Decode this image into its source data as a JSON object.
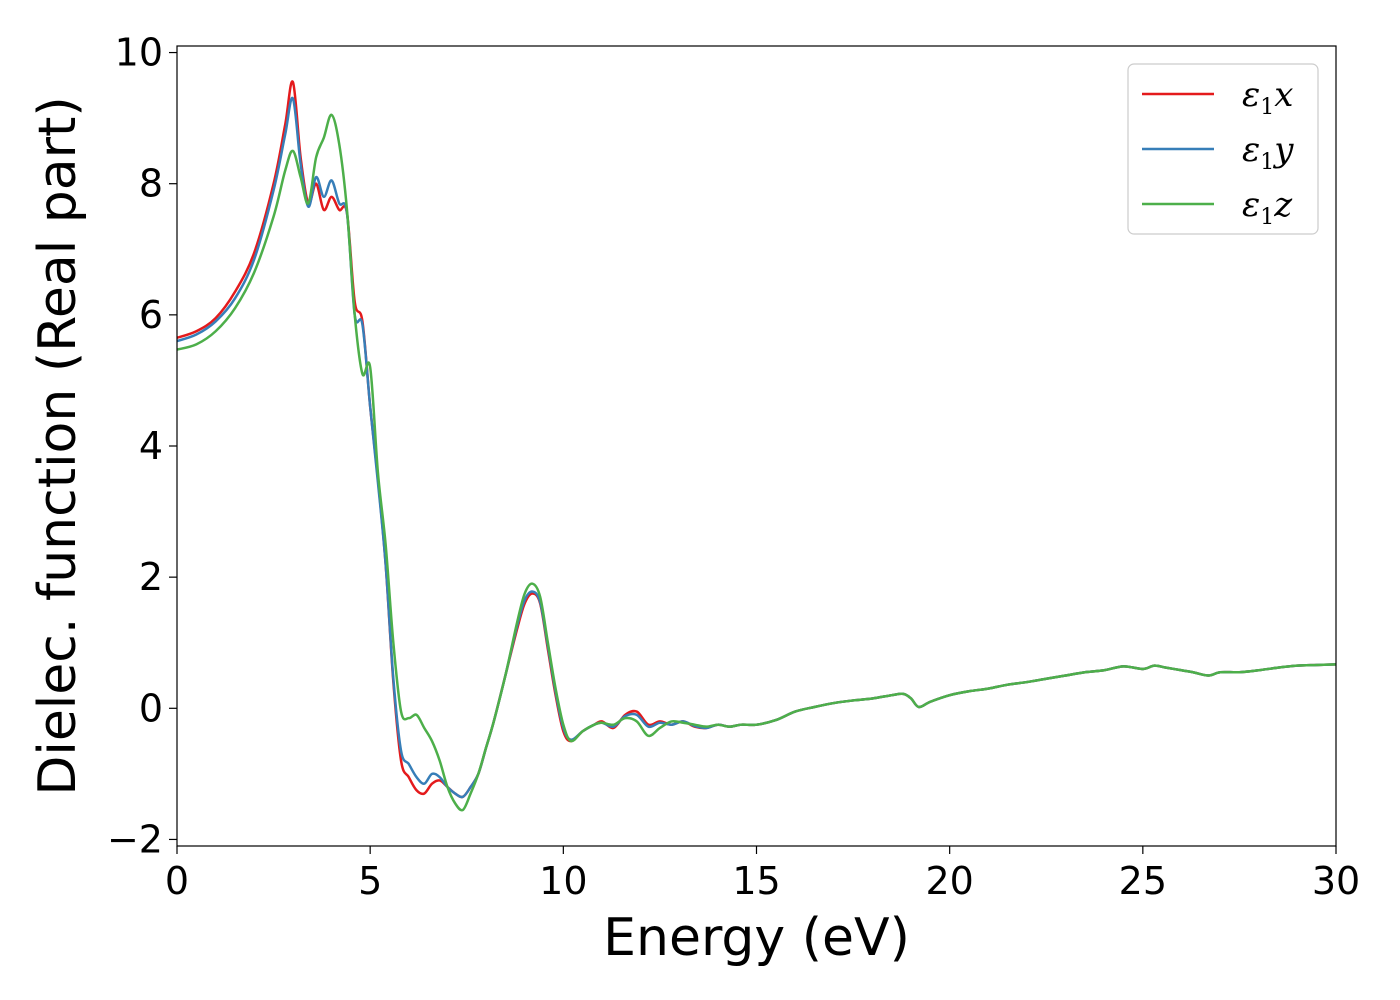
{
  "chart_data": {
    "type": "line",
    "title": "",
    "xlabel": "Energy (eV)",
    "ylabel": "Dielec. function (Real part)",
    "xlim": [
      0,
      30
    ],
    "ylim": [
      -2.1,
      10.1
    ],
    "xticks": [
      0,
      5,
      10,
      15,
      20,
      25,
      30
    ],
    "xtick_labels": [
      "0",
      "5",
      "10",
      "15",
      "20",
      "25",
      "30"
    ],
    "yticks": [
      -2,
      0,
      2,
      4,
      6,
      8,
      10
    ],
    "ytick_labels": [
      "−2",
      "0",
      "2",
      "4",
      "6",
      "8",
      "10"
    ],
    "grid": false,
    "legend_position": "top-right",
    "series": [
      {
        "name": "ε1x",
        "legend_main": "ε",
        "legend_sub": "1",
        "legend_suffix": "x",
        "color": "#e41a1c",
        "x": [
          0,
          0.5,
          1,
          1.5,
          2,
          2.5,
          2.8,
          3.0,
          3.2,
          3.4,
          3.6,
          3.8,
          4.0,
          4.2,
          4.4,
          4.6,
          4.8,
          5.0,
          5.2,
          5.4,
          5.6,
          5.8,
          6.0,
          6.2,
          6.4,
          6.6,
          6.8,
          7.0,
          7.2,
          7.4,
          7.6,
          7.8,
          8.0,
          8.2,
          8.5,
          8.8,
          9.0,
          9.2,
          9.4,
          9.6,
          9.8,
          10.0,
          10.2,
          10.5,
          10.8,
          11.0,
          11.3,
          11.6,
          11.9,
          12.2,
          12.5,
          12.8,
          13.1,
          13.4,
          13.7,
          14.0,
          14.3,
          14.6,
          15.0,
          15.5,
          16.0,
          16.5,
          17.0,
          17.5,
          18.0,
          18.5,
          18.8,
          19.0,
          19.2,
          19.5,
          20.0,
          20.5,
          21.0,
          21.5,
          22.0,
          22.5,
          23.0,
          23.5,
          24.0,
          24.5,
          25.0,
          25.3,
          25.6,
          26.0,
          26.3,
          26.7,
          27.0,
          27.5,
          28.0,
          28.5,
          29.0,
          29.5,
          30.0
        ],
        "y": [
          5.65,
          5.75,
          5.95,
          6.35,
          6.95,
          8.0,
          8.9,
          9.55,
          8.4,
          7.7,
          8.0,
          7.6,
          7.8,
          7.6,
          7.55,
          6.2,
          5.9,
          4.6,
          3.5,
          2.2,
          0.4,
          -0.8,
          -1.05,
          -1.25,
          -1.3,
          -1.15,
          -1.1,
          -1.2,
          -1.3,
          -1.35,
          -1.2,
          -1.0,
          -0.6,
          -0.2,
          0.5,
          1.2,
          1.6,
          1.75,
          1.6,
          0.9,
          0.2,
          -0.35,
          -0.5,
          -0.35,
          -0.25,
          -0.2,
          -0.3,
          -0.1,
          -0.05,
          -0.25,
          -0.2,
          -0.25,
          -0.2,
          -0.28,
          -0.3,
          -0.25,
          -0.28,
          -0.25,
          -0.25,
          -0.18,
          -0.05,
          0.02,
          0.08,
          0.12,
          0.15,
          0.2,
          0.22,
          0.15,
          0.02,
          0.1,
          0.2,
          0.26,
          0.3,
          0.36,
          0.4,
          0.45,
          0.5,
          0.55,
          0.58,
          0.64,
          0.6,
          0.65,
          0.62,
          0.58,
          0.55,
          0.5,
          0.55,
          0.55,
          0.58,
          0.62,
          0.65,
          0.66,
          0.67
        ]
      },
      {
        "name": "ε1y",
        "legend_main": "ε",
        "legend_sub": "1",
        "legend_suffix": "y",
        "color": "#377eb8",
        "x": [
          0,
          0.5,
          1,
          1.5,
          2,
          2.5,
          2.8,
          3.0,
          3.2,
          3.4,
          3.6,
          3.8,
          4.0,
          4.2,
          4.4,
          4.6,
          4.8,
          5.0,
          5.2,
          5.4,
          5.6,
          5.8,
          6.0,
          6.2,
          6.4,
          6.6,
          6.8,
          7.0,
          7.2,
          7.4,
          7.6,
          7.8,
          8.0,
          8.2,
          8.5,
          8.8,
          9.0,
          9.2,
          9.4,
          9.6,
          9.8,
          10.0,
          10.2,
          10.5,
          10.8,
          11.0,
          11.3,
          11.6,
          11.9,
          12.2,
          12.5,
          12.8,
          13.1,
          13.4,
          13.7,
          14.0,
          14.3,
          14.6,
          15.0,
          15.5,
          16.0,
          16.5,
          17.0,
          17.5,
          18.0,
          18.5,
          18.8,
          19.0,
          19.2,
          19.5,
          20.0,
          20.5,
          21.0,
          21.5,
          22.0,
          22.5,
          23.0,
          23.5,
          24.0,
          24.5,
          25.0,
          25.3,
          25.6,
          26.0,
          26.3,
          26.7,
          27.0,
          27.5,
          28.0,
          28.5,
          29.0,
          29.5,
          30.0
        ],
        "y": [
          5.6,
          5.7,
          5.9,
          6.25,
          6.85,
          7.9,
          8.75,
          9.3,
          8.3,
          7.65,
          8.1,
          7.8,
          8.05,
          7.7,
          7.55,
          6.0,
          5.85,
          4.6,
          3.45,
          2.2,
          0.45,
          -0.65,
          -0.85,
          -1.05,
          -1.15,
          -1.0,
          -1.05,
          -1.2,
          -1.3,
          -1.35,
          -1.2,
          -1.0,
          -0.6,
          -0.2,
          0.5,
          1.25,
          1.65,
          1.78,
          1.62,
          0.95,
          0.25,
          -0.3,
          -0.48,
          -0.35,
          -0.25,
          -0.22,
          -0.28,
          -0.12,
          -0.1,
          -0.28,
          -0.22,
          -0.25,
          -0.2,
          -0.27,
          -0.3,
          -0.25,
          -0.28,
          -0.25,
          -0.25,
          -0.18,
          -0.05,
          0.02,
          0.08,
          0.12,
          0.15,
          0.2,
          0.22,
          0.15,
          0.02,
          0.1,
          0.2,
          0.26,
          0.3,
          0.36,
          0.4,
          0.45,
          0.5,
          0.55,
          0.58,
          0.64,
          0.6,
          0.65,
          0.62,
          0.58,
          0.55,
          0.5,
          0.55,
          0.55,
          0.58,
          0.62,
          0.65,
          0.66,
          0.67
        ]
      },
      {
        "name": "ε1z",
        "legend_main": "ε",
        "legend_sub": "1",
        "legend_suffix": "z",
        "color": "#4daf4a",
        "x": [
          0,
          0.5,
          1,
          1.5,
          2,
          2.5,
          2.8,
          3.0,
          3.2,
          3.4,
          3.6,
          3.8,
          4.0,
          4.2,
          4.4,
          4.6,
          4.8,
          5.0,
          5.2,
          5.4,
          5.6,
          5.8,
          6.0,
          6.2,
          6.4,
          6.6,
          6.8,
          7.0,
          7.2,
          7.4,
          7.6,
          7.8,
          8.0,
          8.2,
          8.5,
          8.8,
          9.0,
          9.2,
          9.4,
          9.6,
          9.8,
          10.0,
          10.2,
          10.5,
          10.8,
          11.0,
          11.3,
          11.6,
          11.9,
          12.2,
          12.5,
          12.8,
          13.1,
          13.4,
          13.7,
          14.0,
          14.3,
          14.6,
          15.0,
          15.5,
          16.0,
          16.5,
          17.0,
          17.5,
          18.0,
          18.5,
          18.8,
          19.0,
          19.2,
          19.5,
          20.0,
          20.5,
          21.0,
          21.5,
          22.0,
          22.5,
          23.0,
          23.5,
          24.0,
          24.5,
          25.0,
          25.3,
          25.6,
          26.0,
          26.3,
          26.7,
          27.0,
          27.5,
          28.0,
          28.5,
          29.0,
          29.5,
          30.0
        ],
        "y": [
          5.47,
          5.55,
          5.75,
          6.1,
          6.65,
          7.5,
          8.2,
          8.5,
          8.1,
          7.7,
          8.4,
          8.7,
          9.05,
          8.6,
          7.6,
          6.0,
          5.1,
          5.2,
          3.6,
          2.5,
          1.0,
          -0.05,
          -0.15,
          -0.1,
          -0.3,
          -0.5,
          -0.8,
          -1.2,
          -1.45,
          -1.55,
          -1.3,
          -1.0,
          -0.6,
          -0.2,
          0.5,
          1.3,
          1.75,
          1.9,
          1.7,
          1.0,
          0.3,
          -0.25,
          -0.5,
          -0.35,
          -0.25,
          -0.22,
          -0.25,
          -0.15,
          -0.2,
          -0.42,
          -0.3,
          -0.2,
          -0.22,
          -0.25,
          -0.28,
          -0.25,
          -0.28,
          -0.25,
          -0.25,
          -0.18,
          -0.05,
          0.02,
          0.08,
          0.12,
          0.15,
          0.2,
          0.22,
          0.15,
          0.02,
          0.1,
          0.2,
          0.26,
          0.3,
          0.36,
          0.4,
          0.45,
          0.5,
          0.55,
          0.58,
          0.64,
          0.6,
          0.65,
          0.62,
          0.58,
          0.55,
          0.5,
          0.55,
          0.55,
          0.58,
          0.62,
          0.65,
          0.66,
          0.67
        ]
      }
    ]
  }
}
